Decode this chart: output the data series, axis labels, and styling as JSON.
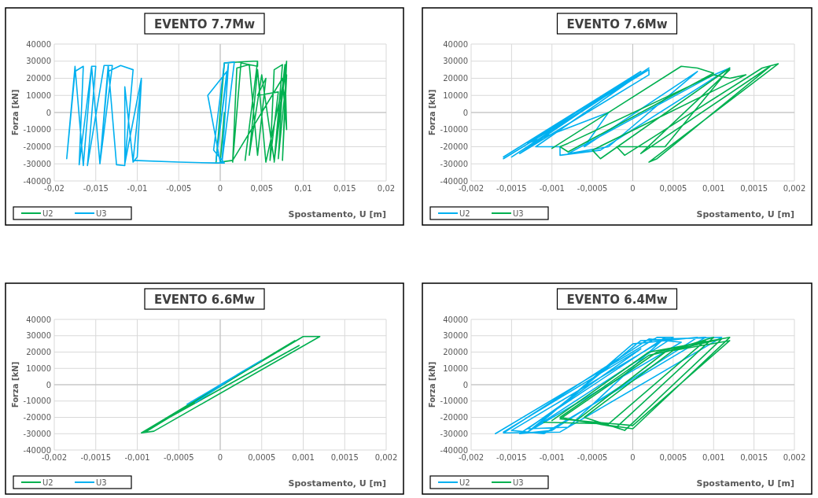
{
  "chart_data": [
    {
      "type": "line",
      "title": "EVENTO 7.7Mw",
      "xlabel": "Spostamento, U [m]",
      "ylabel": "Forza [kN]",
      "grid": true,
      "legend": "bottom left",
      "xlim": [
        -0.02,
        0.02
      ],
      "ylim": [
        -40000,
        40000
      ],
      "xticks": [
        {
          "value": -0.02,
          "label": "-0,02"
        },
        {
          "value": -0.015,
          "label": "-0,015"
        },
        {
          "value": -0.01,
          "label": "-0,01"
        },
        {
          "value": -0.005,
          "label": "-0,005"
        },
        {
          "value": 0,
          "label": "0"
        },
        {
          "value": 0.005,
          "label": "0,005"
        },
        {
          "value": 0.01,
          "label": "0,01"
        },
        {
          "value": 0.015,
          "label": "0,015"
        },
        {
          "value": 0.02,
          "label": "0,02"
        }
      ],
      "yticks": [
        -40000,
        -30000,
        -20000,
        -10000,
        0,
        10000,
        20000,
        30000,
        40000
      ],
      "series": [
        {
          "name": "U2",
          "color": "#00b050",
          "x": [
            -0.0005,
            0.0005,
            0.004,
            0.0045,
            0.003,
            0.0045,
            0.0045,
            0.0025,
            0.0015,
            0.002,
            0.0035,
            0.0045,
            0.0055,
            0.0045,
            0.007,
            0.006,
            0.0065,
            0.0075,
            0.0065,
            0.008,
            0.0075,
            0.008,
            0.007,
            0.0075,
            0.0055,
            0.0045,
            0.0035,
            0.005,
            0.0065,
            0.0078,
            0.008,
            0.0075,
            0.0015,
            0,
            0.0005
          ],
          "values": [
            -29000,
            29000,
            30000,
            30000,
            -28000,
            30000,
            27000,
            29000,
            -29000,
            26000,
            28000,
            -25000,
            20000,
            10000,
            12000,
            -28000,
            25000,
            28000,
            -29000,
            30000,
            -28000,
            22000,
            -27000,
            15000,
            -29000,
            25000,
            -25000,
            22000,
            -28000,
            28000,
            -10000,
            20000,
            -28000,
            -29000,
            0
          ]
        },
        {
          "name": "U3",
          "color": "#00b0f0",
          "x": [
            -0.0095,
            -0.0115,
            -0.0105,
            -0.012,
            -0.0135,
            -0.0145,
            -0.013,
            -0.014,
            -0.016,
            -0.015,
            -0.0155,
            -0.017,
            -0.0165,
            -0.0175,
            -0.0185,
            -0.0175,
            -0.0165,
            -0.0155,
            -0.0145,
            -0.0135,
            -0.0125,
            -0.0115,
            -0.0115,
            -0.0105,
            -0.01,
            -0.0095,
            -0.0105,
            -0.005,
            -0.0005,
            0.0005,
            -0.0008,
            0.0005,
            0.0017,
            0.0002,
            0.001,
            -0.0005,
            0.0008,
            -0.0015,
            0
          ],
          "values": [
            20000,
            -30000,
            25000,
            27500,
            24000,
            -30000,
            27500,
            27500,
            -31000,
            27000,
            27000,
            -30500,
            27000,
            24000,
            -27000,
            27000,
            -31000,
            27000,
            -30000,
            27500,
            -30500,
            -31000,
            15000,
            -29000,
            -26000,
            19000,
            -28000,
            -29000,
            -29500,
            -29500,
            -22000,
            29000,
            29500,
            -29500,
            29000,
            -28000,
            24000,
            10000,
            -29000
          ]
        }
      ]
    },
    {
      "type": "line",
      "title": "EVENTO 7.6Mw",
      "xlabel": "Spostamento, U [m]",
      "ylabel": "Forza [kN]",
      "grid": true,
      "legend": "bottom left",
      "xlim": [
        -0.002,
        0.002
      ],
      "ylim": [
        -40000,
        40000
      ],
      "xticks": [
        {
          "value": -0.002,
          "label": "-0,002"
        },
        {
          "value": -0.0015,
          "label": "-0,0015"
        },
        {
          "value": -0.001,
          "label": "-0,001"
        },
        {
          "value": -0.0005,
          "label": "-0,0005"
        },
        {
          "value": 0,
          "label": "0"
        },
        {
          "value": 0.0005,
          "label": "0,0005"
        },
        {
          "value": 0.001,
          "label": "0,001"
        },
        {
          "value": 0.0015,
          "label": "0,0015"
        },
        {
          "value": 0.002,
          "label": "0,002"
        }
      ],
      "yticks": [
        -40000,
        -30000,
        -20000,
        -10000,
        {
          "value": 0,
          "label": "0"
        },
        10000,
        20000,
        30000,
        40000
      ],
      "series": [
        {
          "name": "U2",
          "color": "#00b0f0",
          "x": [
            -0.0016,
            0.0002,
            0.0002,
            -0.0014,
            0.0001,
            -0.0015,
            0.0002,
            -0.0012,
            -0.0009,
            -0.0009,
            -0.0004,
            0.0012,
            0.001,
            -0.0008,
            -0.0003,
            0.0008,
            -0.0006,
            -0.0003,
            -0.0013,
            0.0001,
            -0.0016
          ],
          "values": [
            -27000,
            25000,
            22000,
            -24000,
            24000,
            -26000,
            26000,
            -20000,
            -20000,
            -25000,
            -22000,
            26000,
            22000,
            -24000,
            -20000,
            24000,
            -20000,
            0,
            -18000,
            24000,
            -26000
          ]
        },
        {
          "name": "U3",
          "color": "#00b050",
          "x": [
            -0.001,
            0.0006,
            0.0008,
            0.001,
            -0.0008,
            -0.0009,
            -0.0008,
            0.001,
            0.0012,
            0.0014,
            -0.0005,
            -0.0004,
            0.0012,
            0.0004,
            -0.0002,
            -0.0001,
            0.0016,
            0.0018,
            0.0002,
            0.0003,
            0.0017,
            0.0001,
            0.0012
          ],
          "values": [
            -21000,
            27000,
            26000,
            23000,
            -23000,
            -20000,
            -18000,
            22000,
            20000,
            22000,
            -22000,
            -27000,
            26000,
            -20000,
            -20000,
            -25000,
            26000,
            28500,
            -29000,
            -27000,
            27000,
            -24000,
            25000
          ]
        }
      ]
    },
    {
      "type": "line",
      "title": "EVENTO 6.6Mw",
      "xlabel": "Spostamento, U [m]",
      "ylabel": "Forza [kN]",
      "grid": true,
      "legend": "bottom left",
      "xlim": [
        -0.002,
        0.002
      ],
      "ylim": [
        -40000,
        40000
      ],
      "xticks": [
        {
          "value": -0.002,
          "label": "-0,002"
        },
        {
          "value": -0.0015,
          "label": "-0,0015"
        },
        {
          "value": -0.001,
          "label": "-0,001"
        },
        {
          "value": -0.0005,
          "label": "-0,0005"
        },
        {
          "value": 0,
          "label": "0"
        },
        {
          "value": 0.0005,
          "label": "0,0005"
        },
        {
          "value": 0.001,
          "label": "0,001"
        },
        {
          "value": 0.0015,
          "label": "0,0015"
        },
        {
          "value": 0.002,
          "label": "0,002"
        }
      ],
      "yticks": [
        -40000,
        -30000,
        -20000,
        -10000,
        0,
        10000,
        20000,
        30000,
        40000
      ],
      "series": [
        {
          "name": "U2",
          "color": "#00b050",
          "x": [
            -0.00095,
            0.001,
            0.0012,
            -0.0008,
            -0.00095,
            0.00095,
            -0.0009,
            0.0009,
            -0.0009
          ],
          "values": [
            -29500,
            29500,
            29500,
            -28500,
            -29500,
            24000,
            -28000,
            27000,
            -29000
          ]
        },
        {
          "name": "U3",
          "color": "#00b0f0",
          "x": [
            -0.0004,
            0.0005,
            0.0002,
            -0.0003
          ],
          "values": [
            -12000,
            15000,
            6000,
            -11000
          ]
        }
      ]
    },
    {
      "type": "line",
      "title": "EVENTO 6.4Mw",
      "xlabel": "Spostamento, U [m]",
      "ylabel": "Forza [kN]",
      "grid": true,
      "legend": "bottom left",
      "xlim": [
        -0.002,
        0.002
      ],
      "ylim": [
        -40000,
        40000
      ],
      "xticks": [
        {
          "value": -0.002,
          "label": "-0,002"
        },
        {
          "value": -0.0015,
          "label": "-0,0015"
        },
        {
          "value": -0.001,
          "label": "-0,001"
        },
        {
          "value": -0.0005,
          "label": "-0,0005"
        },
        {
          "value": 0,
          "label": "0"
        },
        {
          "value": 0.0005,
          "label": "0,0005"
        },
        {
          "value": 0.001,
          "label": "0,001"
        },
        {
          "value": 0.0015,
          "label": "0,0015"
        },
        {
          "value": 0.002,
          "label": "0,002"
        }
      ],
      "yticks": [
        -40000,
        -30000,
        -20000,
        -10000,
        0,
        10000,
        20000,
        30000,
        40000
      ],
      "series": [
        {
          "name": "U2",
          "color": "#00b0f0",
          "x": [
            -0.0017,
            0.0003,
            0.0005,
            -0.0013,
            0.0001,
            0.0009,
            -0.0011,
            -0.0015,
            0.0004,
            0.0011,
            -0.0009,
            -0.0016,
            0.0002,
            0.0006,
            -0.0012,
            0,
            0.0008,
            -0.001,
            -0.0014,
            0.0004,
            -0.0008,
            -0.0013,
            0.0001,
            -0.0016
          ],
          "values": [
            -30000,
            29000,
            29000,
            -29000,
            27000,
            29000,
            -30000,
            -28000,
            28000,
            29000,
            -29000,
            -29500,
            28000,
            26000,
            -26000,
            25000,
            29000,
            -28000,
            -30000,
            29000,
            -26000,
            -27000,
            22000,
            -29000
          ]
        },
        {
          "name": "U3",
          "color": "#00b050",
          "x": [
            -0.001,
            0.0002,
            0.0012,
            0,
            -0.0007,
            0.0004,
            0.001,
            -0.0002,
            -0.0009,
            0.0002,
            0.0011,
            -0.0001,
            -0.0006,
            0.0005,
            0.0012,
            0,
            -0.0009,
            0.0003,
            0.0009,
            -0.0003,
            -0.0011
          ],
          "values": [
            -22000,
            20000,
            29000,
            -27000,
            -22000,
            20000,
            29000,
            -26000,
            -20000,
            18000,
            28000,
            -28000,
            -20000,
            21000,
            27000,
            -25000,
            -21000,
            20000,
            27000,
            -24000,
            -23000
          ]
        }
      ]
    }
  ]
}
